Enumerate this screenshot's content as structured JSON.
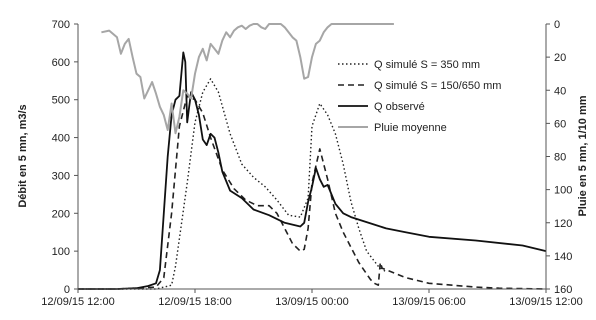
{
  "chart_data": {
    "type": "line",
    "xlabel": "",
    "ylabel": "Débit en 5 mn, m3/s",
    "ylabel_right": "Pluie en 5 mn, 1/10 mm",
    "y_ticks": [
      "0",
      "100",
      "200",
      "300",
      "400",
      "500",
      "600",
      "700"
    ],
    "y2_ticks": [
      "0",
      "20",
      "40",
      "60",
      "80",
      "100",
      "120",
      "140",
      "160"
    ],
    "x_ticks": [
      "12/09/15 12:00",
      "12/09/15 18:00",
      "13/09/15 00:00",
      "13/09/15 06:00",
      "13/09/15 12:00"
    ],
    "ylim": [
      0,
      700
    ],
    "y2lim": [
      160,
      0
    ],
    "grid": false,
    "legend_position": "top-right",
    "series": [
      {
        "name": "Q simulé S = 350  mm",
        "axis": "left",
        "style": "dotted",
        "color": "#222222",
        "x": [
          "12/09/15 12:00",
          "12/09/15 14:00",
          "12/09/15 16:00",
          "12/09/15 16:48",
          "12/09/15 17:00",
          "12/09/15 17:36",
          "12/09/15 18:00",
          "12/09/15 18:24",
          "12/09/15 18:48",
          "12/09/15 19:12",
          "12/09/15 19:48",
          "12/09/15 20:24",
          "12/09/15 21:00",
          "12/09/15 21:36",
          "12/09/15 22:12",
          "12/09/15 22:48",
          "12/09/15 23:24",
          "12/09/15 23:48",
          "13/09/15 00:00",
          "13/09/15 00:24",
          "13/09/15 00:48",
          "13/09/15 01:12",
          "13/09/15 01:36",
          "13/09/15 02:00",
          "13/09/15 02:24",
          "13/09/15 02:48",
          "13/09/15 03:24",
          "13/09/15 03:48"
        ],
        "values": [
          0,
          0,
          0,
          10,
          60,
          280,
          440,
          520,
          555,
          520,
          410,
          330,
          295,
          270,
          235,
          195,
          190,
          240,
          430,
          490,
          460,
          410,
          330,
          230,
          160,
          100,
          60,
          45
        ]
      },
      {
        "name": "Q simulé S = 150/650 mm",
        "axis": "left",
        "style": "dashed",
        "color": "#222222",
        "x": [
          "12/09/15 12:00",
          "12/09/15 14:00",
          "12/09/15 16:00",
          "12/09/15 16:24",
          "12/09/15 16:48",
          "12/09/15 17:12",
          "12/09/15 17:36",
          "12/09/15 18:00",
          "12/09/15 18:24",
          "12/09/15 18:48",
          "12/09/15 19:24",
          "12/09/15 20:00",
          "12/09/15 20:36",
          "12/09/15 21:12",
          "12/09/15 21:48",
          "12/09/15 22:12",
          "12/09/15 22:36",
          "12/09/15 23:00",
          "12/09/15 23:24",
          "12/09/15 23:36",
          "12/09/15 23:48",
          "13/09/15 00:00",
          "13/09/15 00:24",
          "13/09/15 00:48",
          "13/09/15 01:12",
          "13/09/15 01:36",
          "13/09/15 02:00",
          "13/09/15 02:24",
          "13/09/15 02:48",
          "13/09/15 03:00",
          "13/09/15 03:12",
          "13/09/15 03:24",
          "13/09/15 03:30",
          "13/09/15 03:36",
          "13/09/15 04:48",
          "13/09/15 06:00",
          "13/09/15 08:24",
          "13/09/15 09:36",
          "13/09/15 12:00"
        ],
        "values": [
          0,
          0,
          5,
          30,
          200,
          430,
          510,
          500,
          465,
          400,
          315,
          265,
          235,
          220,
          220,
          200,
          160,
          120,
          100,
          105,
          160,
          280,
          370,
          290,
          200,
          150,
          110,
          70,
          40,
          25,
          15,
          10,
          70,
          55,
          30,
          15,
          5,
          2,
          0
        ]
      },
      {
        "name": "Q observé",
        "axis": "left",
        "style": "solid",
        "color": "#111111",
        "x": [
          "12/09/15 12:00",
          "12/09/15 14:00",
          "12/09/15 15:00",
          "12/09/15 15:36",
          "12/09/15 16:00",
          "12/09/15 16:12",
          "12/09/15 16:24",
          "12/09/15 16:36",
          "12/09/15 16:48",
          "12/09/15 17:00",
          "12/09/15 17:12",
          "12/09/15 17:24",
          "12/09/15 17:30",
          "12/09/15 17:36",
          "12/09/15 17:42",
          "12/09/15 17:48",
          "12/09/15 17:54",
          "12/09/15 18:00",
          "12/09/15 18:12",
          "12/09/15 18:24",
          "12/09/15 18:36",
          "12/09/15 18:48",
          "12/09/15 19:00",
          "12/09/15 19:12",
          "12/09/15 19:24",
          "12/09/15 19:48",
          "12/09/15 20:24",
          "12/09/15 21:00",
          "12/09/15 21:48",
          "12/09/15 22:36",
          "12/09/15 23:24",
          "12/09/15 23:36",
          "12/09/15 23:48",
          "13/09/15 00:00",
          "13/09/15 00:12",
          "13/09/15 00:24",
          "13/09/15 00:36",
          "13/09/15 00:48",
          "13/09/15 01:00",
          "13/09/15 01:12",
          "13/09/15 01:36",
          "13/09/15 02:00",
          "13/09/15 02:36",
          "13/09/15 03:12",
          "13/09/15 03:48",
          "13/09/15 04:48",
          "13/09/15 06:00",
          "13/09/15 08:24",
          "13/09/15 10:48",
          "13/09/15 12:00"
        ],
        "values": [
          0,
          0,
          2,
          8,
          15,
          50,
          200,
          350,
          460,
          500,
          510,
          625,
          600,
          440,
          480,
          520,
          510,
          500,
          460,
          395,
          380,
          410,
          400,
          360,
          310,
          260,
          240,
          210,
          195,
          175,
          165,
          175,
          230,
          270,
          320,
          290,
          270,
          275,
          250,
          225,
          200,
          190,
          180,
          170,
          160,
          150,
          138,
          128,
          115,
          100
        ]
      },
      {
        "name": "Pluie moyenne",
        "axis": "right",
        "style": "solid",
        "color": "#a6a6a6",
        "x": [
          "12/09/15 13:12",
          "12/09/15 13:36",
          "12/09/15 14:00",
          "12/09/15 14:12",
          "12/09/15 14:24",
          "12/09/15 14:36",
          "12/09/15 14:48",
          "12/09/15 15:00",
          "12/09/15 15:12",
          "12/09/15 15:24",
          "12/09/15 15:36",
          "12/09/15 15:48",
          "12/09/15 16:00",
          "12/09/15 16:12",
          "12/09/15 16:24",
          "12/09/15 16:36",
          "12/09/15 16:48",
          "12/09/15 17:00",
          "12/09/15 17:12",
          "12/09/15 17:24",
          "12/09/15 17:36",
          "12/09/15 17:48",
          "12/09/15 18:00",
          "12/09/15 18:12",
          "12/09/15 18:24",
          "12/09/15 18:36",
          "12/09/15 18:48",
          "12/09/15 19:00",
          "12/09/15 19:12",
          "12/09/15 19:24",
          "12/09/15 19:36",
          "12/09/15 19:48",
          "12/09/15 20:00",
          "12/09/15 20:12",
          "12/09/15 20:24",
          "12/09/15 20:36",
          "12/09/15 20:48",
          "12/09/15 21:00",
          "12/09/15 21:12",
          "12/09/15 21:24",
          "12/09/15 21:36",
          "12/09/15 21:48",
          "12/09/15 22:00",
          "12/09/15 22:12",
          "12/09/15 22:24",
          "12/09/15 22:36",
          "12/09/15 22:48",
          "12/09/15 23:00",
          "12/09/15 23:12",
          "12/09/15 23:24",
          "12/09/15 23:36",
          "12/09/15 23:48",
          "13/09/15 00:00",
          "13/09/15 00:12",
          "13/09/15 00:24",
          "13/09/15 00:36",
          "13/09/15 00:48",
          "13/09/15 01:00",
          "13/09/15 01:12",
          "13/09/15 04:12"
        ],
        "values": [
          5,
          4,
          8,
          18,
          12,
          9,
          20,
          30,
          32,
          45,
          40,
          35,
          42,
          50,
          55,
          64,
          48,
          66,
          56,
          40,
          42,
          45,
          30,
          20,
          15,
          22,
          12,
          15,
          18,
          10,
          5,
          8,
          4,
          2,
          1,
          3,
          1,
          0,
          0,
          2,
          3,
          0,
          0,
          0,
          0,
          2,
          5,
          8,
          10,
          20,
          33,
          32,
          20,
          12,
          10,
          5,
          2,
          0,
          0,
          0
        ]
      }
    ]
  }
}
